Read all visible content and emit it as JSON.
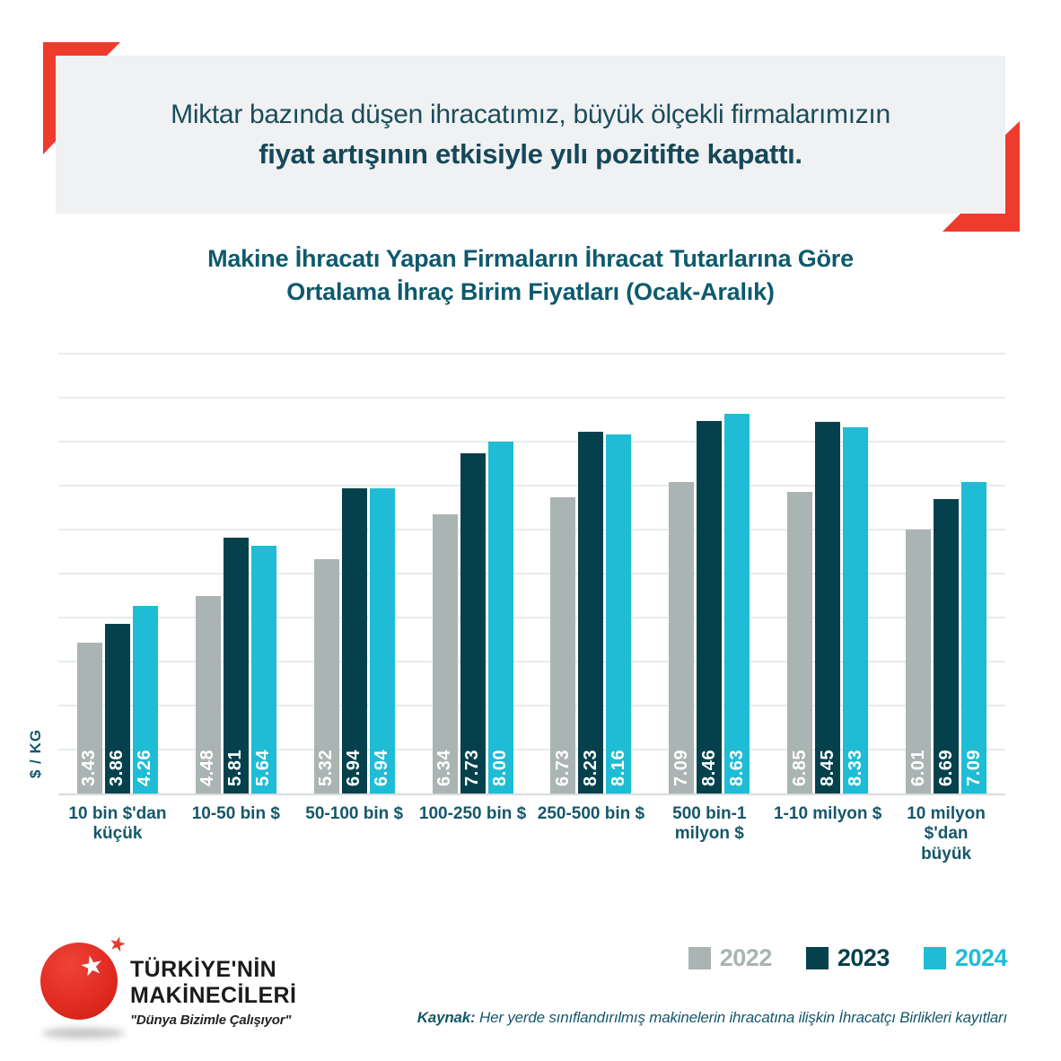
{
  "header": {
    "line1": "Miktar bazında düşen ihracatımız, büyük ölçekli firmalarımızın",
    "line2": "fiyat artışının etkisiyle yılı pozitifte kapattı."
  },
  "titles": {
    "line1": "Makine İhracatı Yapan Firmaların İhracat Tutarlarına Göre",
    "line2": "Ortalama İhraç Birim Fiyatları (Ocak-Aralık)"
  },
  "chart_data": {
    "type": "bar",
    "title": "Makine İhracatı Yapan Firmaların İhracat Tutarlarına Göre Ortalama İhraç Birim Fiyatları (Ocak-Aralık)",
    "ylabel": "$ / KG",
    "ylim": [
      0,
      10
    ],
    "grid": true,
    "legend_position": "bottom-right",
    "value_label_format": "2-decimals, rotated 90° inside bar bottom, white",
    "categories": [
      "10 bin $'dan\nküçük",
      "10-50 bin $",
      "50-100 bin $",
      "100-250 bin $",
      "250-500 bin $",
      "500 bin-1 milyon $",
      "1-10 milyon $",
      "10 milyon $'dan\nbüyük"
    ],
    "series": [
      {
        "name": "2022",
        "color": "#a9b4b3",
        "values": [
          3.43,
          4.48,
          5.32,
          6.34,
          6.73,
          7.09,
          6.85,
          6.01
        ]
      },
      {
        "name": "2023",
        "color": "#04414c",
        "values": [
          3.86,
          5.81,
          6.94,
          7.73,
          8.23,
          8.46,
          8.45,
          6.69
        ]
      },
      {
        "name": "2024",
        "color": "#1fbcd5",
        "values": [
          4.26,
          5.64,
          6.94,
          8.0,
          8.16,
          8.63,
          8.33,
          7.09
        ]
      }
    ]
  },
  "footer": {
    "source_label": "Kaynak:",
    "source_text": " Her yerde sınıflandırılmış makinelerin ihracatına ilişkin İhracatçı Birlikleri kayıtları"
  },
  "logo": {
    "brand_line1": "TÜRKİYE'NİN",
    "brand_line2": "MAKİNECİLERİ",
    "tagline": "\"Dünya Bizimle Çalışıyor\"",
    "star_glyph": "★"
  },
  "colors": {
    "accent_red": "#ee3b2c",
    "header_bg": "#f0f1f2",
    "teal_text": "#16576a",
    "bar_2022": "#a9b4b3",
    "bar_2023": "#04414c",
    "bar_2024": "#1fbcd5",
    "gridline": "#e9ebec"
  }
}
